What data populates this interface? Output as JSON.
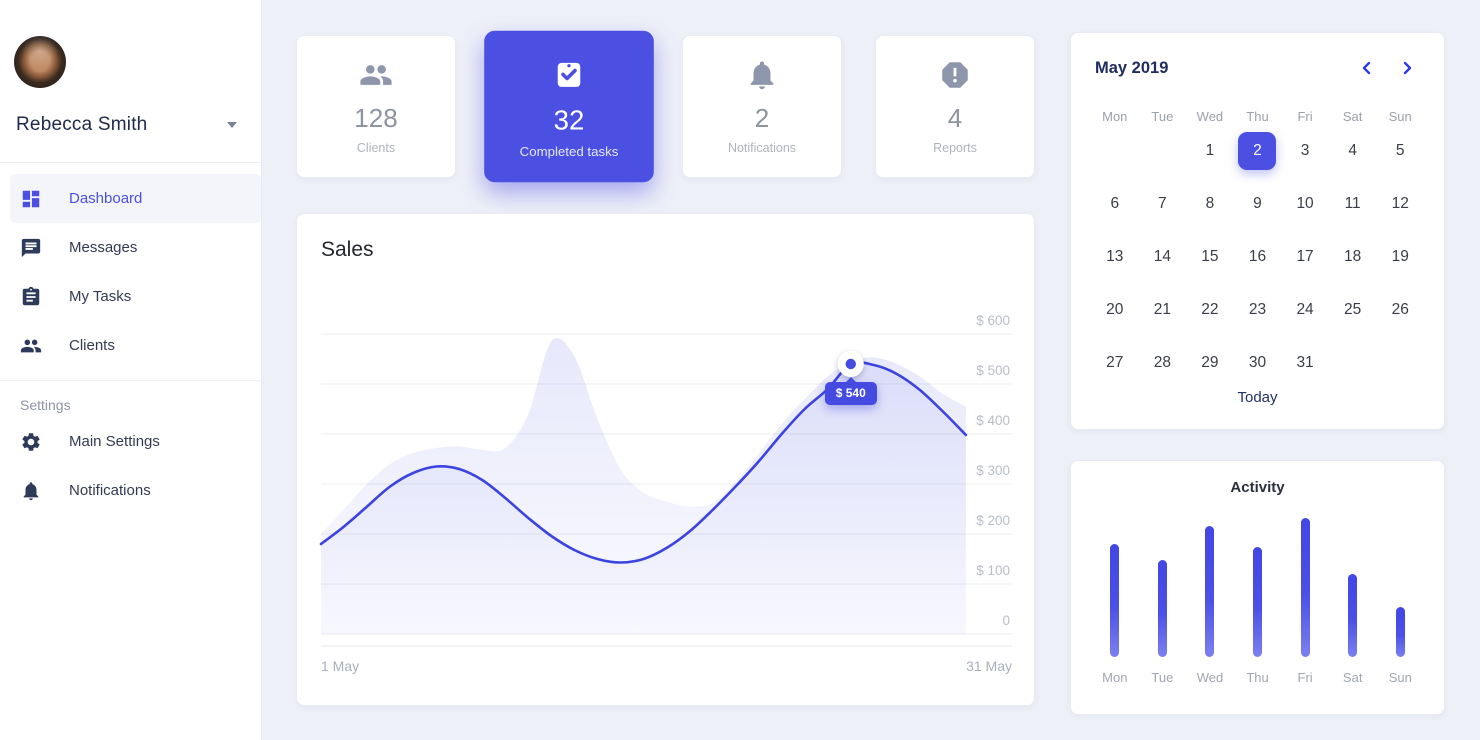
{
  "colors": {
    "primary": "#4b50e2",
    "line": "#3b43e0",
    "sidebar_icon": "#2e3a59",
    "background": "#eef0f8",
    "muted_gray": "#9ba1ad"
  },
  "user": {
    "name": "Rebecca Smith"
  },
  "sidebar": {
    "items": [
      {
        "label": "Dashboard",
        "icon": "dashboard-icon",
        "active": true
      },
      {
        "label": "Messages",
        "icon": "message-icon",
        "active": false
      },
      {
        "label": "My Tasks",
        "icon": "clipboard-icon",
        "active": false
      },
      {
        "label": "Clients",
        "icon": "people-icon",
        "active": false
      }
    ],
    "settings_header": "Settings",
    "settings_items": [
      {
        "label": "Main Settings",
        "icon": "gear-icon"
      },
      {
        "label": "Notifications",
        "icon": "bell-icon"
      }
    ]
  },
  "stats": [
    {
      "value": "128",
      "label": "Clients",
      "icon": "people-icon",
      "active": false
    },
    {
      "value": "32",
      "label": "Completed tasks",
      "icon": "clipboard-check-icon",
      "active": true
    },
    {
      "value": "2",
      "label": "Notifications",
      "icon": "bell-icon",
      "active": false
    },
    {
      "value": "4",
      "label": "Reports",
      "icon": "report-octagon-icon",
      "active": false
    }
  ],
  "sales": {
    "y_ticks": [
      "$ 600",
      "$ 500",
      "$ 400",
      "$ 300",
      "$ 200",
      "$ 100",
      "0"
    ],
    "x_start_label": "1 May",
    "x_end_label": "31 May",
    "tooltip": "$ 540"
  },
  "chart_data": [
    {
      "type": "area",
      "title": "Sales",
      "x_unit": "day of May 2019",
      "x_domain": [
        1,
        31
      ],
      "x": [
        1,
        2,
        3,
        4,
        5,
        6,
        7,
        8,
        9,
        10,
        11,
        12,
        13,
        14,
        15,
        16,
        17,
        18,
        19,
        20,
        21,
        22,
        23,
        24,
        25,
        26,
        27,
        28,
        29
      ],
      "ylim": [
        0,
        600
      ],
      "y_ticks": [
        600,
        500,
        400,
        300,
        200,
        100,
        0
      ],
      "x_tick_labels": [
        "1 May",
        "31 May"
      ],
      "legend": "none",
      "grid": "horizontal",
      "series": [
        {
          "name": "background-area",
          "style": "filled-area",
          "values": [
            200,
            250,
            300,
            340,
            362,
            372,
            375,
            368,
            372,
            440,
            585,
            555,
            430,
            330,
            283,
            265,
            255,
            262,
            305,
            360,
            420,
            470,
            515,
            545,
            553,
            540,
            515,
            480,
            455
          ]
        },
        {
          "name": "sales-line",
          "style": "line",
          "values": [
            180,
            215,
            255,
            295,
            322,
            335,
            330,
            308,
            272,
            232,
            196,
            168,
            150,
            143,
            150,
            172,
            205,
            248,
            295,
            345,
            400,
            450,
            490,
            540,
            538,
            520,
            488,
            445,
            398
          ]
        }
      ],
      "highlight": {
        "day": 24,
        "value": 540,
        "label": "$ 540"
      }
    },
    {
      "type": "bar",
      "title": "Activity",
      "categories": [
        "Mon",
        "Tue",
        "Wed",
        "Thu",
        "Fri",
        "Sat",
        "Sun"
      ],
      "values": [
        81,
        70,
        94,
        79,
        100,
        60,
        36
      ],
      "ylim": [
        0,
        100
      ],
      "unit": "relative activity %"
    }
  ],
  "calendar": {
    "month": "May 2019",
    "weekdays": [
      "Mon",
      "Tue",
      "Wed",
      "Thu",
      "Fri",
      "Sat",
      "Sun"
    ],
    "weeks": [
      [
        "",
        "",
        "1",
        "2",
        "3",
        "4",
        "5"
      ],
      [
        "6",
        "7",
        "8",
        "9",
        "10",
        "11",
        "12"
      ],
      [
        "13",
        "14",
        "15",
        "16",
        "17",
        "18",
        "19"
      ],
      [
        "20",
        "21",
        "22",
        "23",
        "24",
        "25",
        "26"
      ],
      [
        "27",
        "28",
        "29",
        "30",
        "31",
        "",
        ""
      ]
    ],
    "selected_day": "2",
    "today_label": "Today"
  }
}
